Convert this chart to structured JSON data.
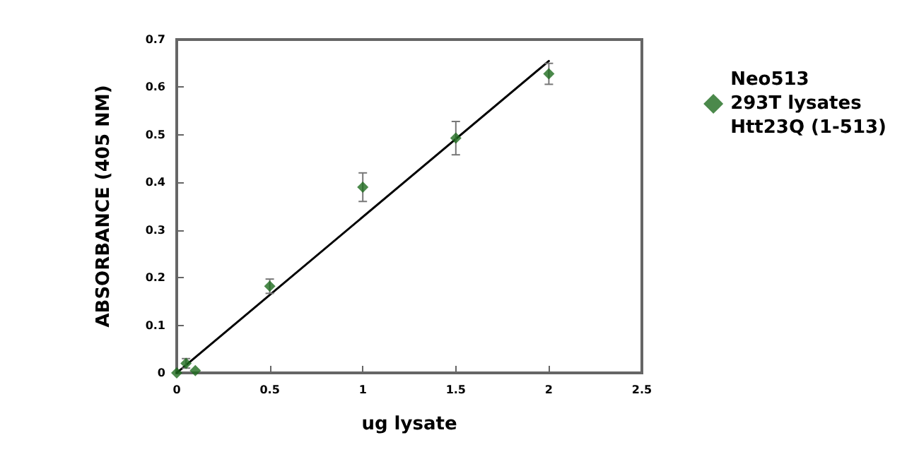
{
  "chart_data": {
    "type": "scatter",
    "xlabel": "ug lysate",
    "ylabel": "ABSORBANCE (405 NM)",
    "xlim": [
      0,
      2.5
    ],
    "xticks": [
      0,
      0.5,
      1,
      1.5,
      2,
      2.5
    ],
    "ylim": [
      0,
      0.7
    ],
    "yticks": [
      0,
      0.1,
      0.2,
      0.3,
      0.4,
      0.5,
      0.6,
      0.7
    ],
    "grid": false,
    "legend": "right",
    "marker": "diamond",
    "series": [
      {
        "name": "Neo513\n293T lysates\nHtt23Q (1-513)",
        "color": "#1e6b1e",
        "x": [
          0,
          0.05,
          0.1,
          0.5,
          1,
          1.5,
          2
        ],
        "values": [
          0,
          0.02,
          0.005,
          0.182,
          0.39,
          0.493,
          0.628
        ],
        "errors": [
          null,
          0.01,
          null,
          0.015,
          0.03,
          0.035,
          0.022
        ]
      },
      {
        "type": "line",
        "color": "#000000",
        "marker": "none",
        "x": [
          0,
          2
        ],
        "values": [
          0,
          0.655
        ]
      }
    ]
  }
}
